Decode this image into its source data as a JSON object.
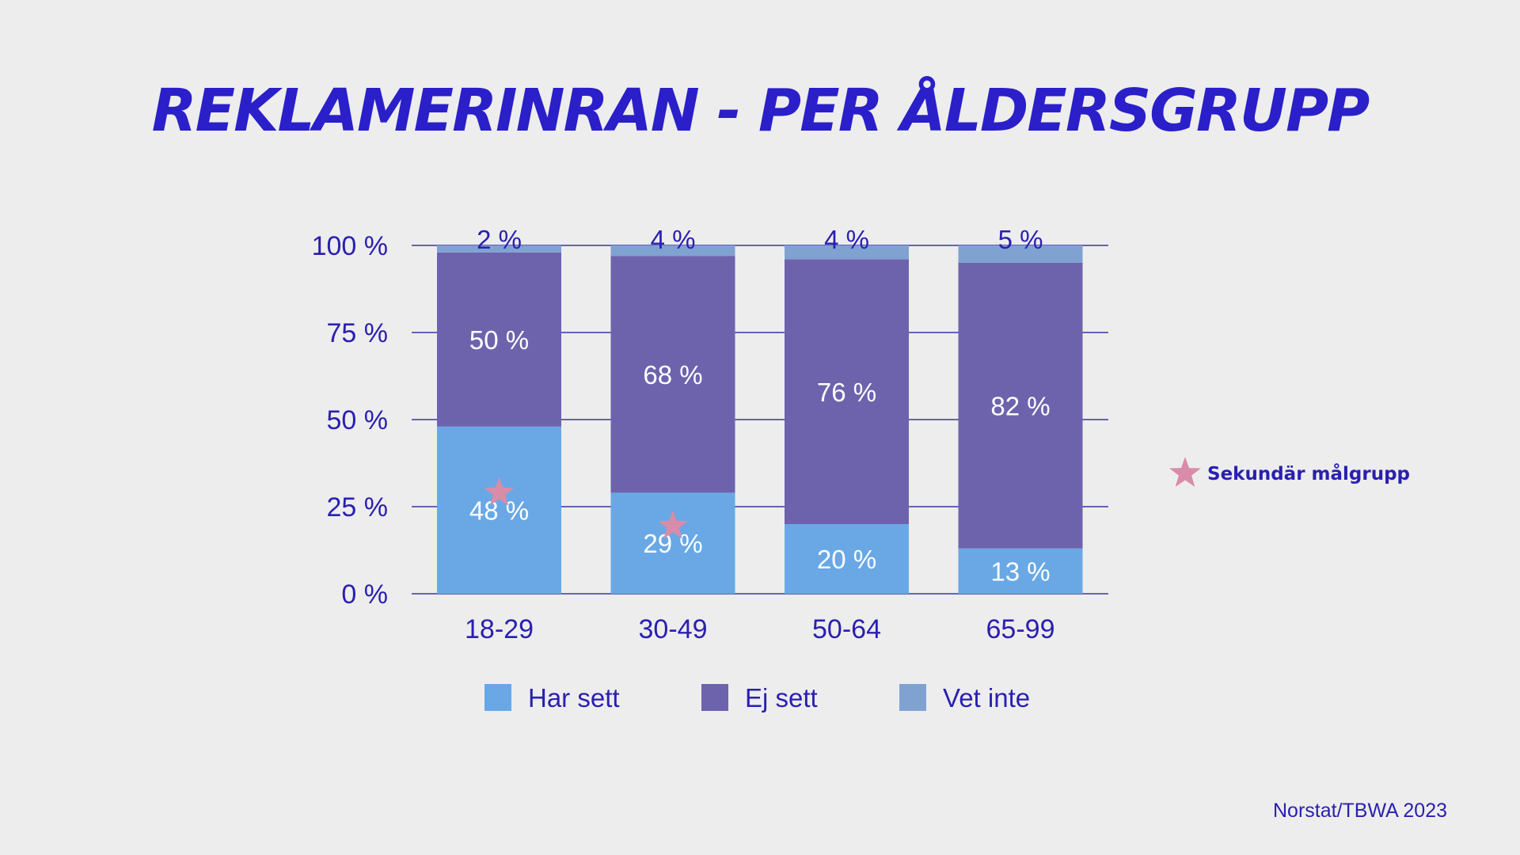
{
  "colors": {
    "background": "#ededed",
    "title": "#2a1fc9",
    "axis_text": "#2a1fb0",
    "gridline": "#3a35a8",
    "data_label_light": "#ffffff",
    "data_label_dark": "#2a1fb0",
    "star": "#d98ca8"
  },
  "source": "Norstat/TBWA 2023",
  "chart_data": {
    "type": "bar",
    "stacked": true,
    "title": "REKLAMERINRAN - PER ÅLDERSGRUPP",
    "xlabel": "",
    "ylabel": "",
    "ylim": [
      0,
      100
    ],
    "yticks": [
      0,
      25,
      50,
      75,
      100
    ],
    "ytick_labels": [
      "0 %",
      "25 %",
      "50 %",
      "75 %",
      "100 %"
    ],
    "grid": true,
    "categories": [
      "18-29",
      "30-49",
      "50-64",
      "65-99"
    ],
    "series": [
      {
        "name": "Har sett",
        "color": "#69a8e5",
        "values": [
          48,
          29,
          20,
          13
        ],
        "labels": [
          "48 %",
          "29 %",
          "20 %",
          "13 %"
        ]
      },
      {
        "name": "Ej sett",
        "color": "#6d63ad",
        "values": [
          50,
          68,
          76,
          82
        ],
        "labels": [
          "50 %",
          "68 %",
          "76 %",
          "82 %"
        ]
      },
      {
        "name": "Vet inte",
        "color": "#80a2d1",
        "values": [
          2,
          4,
          4,
          5
        ],
        "labels": [
          "2 %",
          "4 %",
          "4 %",
          "5 %"
        ]
      }
    ],
    "legend_position": "bottom",
    "annotation": {
      "label": "Sekundär målgrupp",
      "icon": "star-icon",
      "marked_categories": [
        "18-29",
        "30-49"
      ]
    }
  }
}
